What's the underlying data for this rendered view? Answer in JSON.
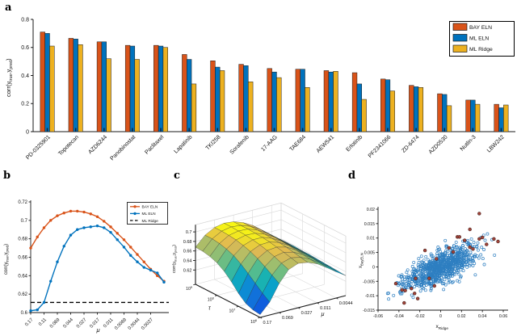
{
  "figure": {
    "background": "#ffffff"
  },
  "colors": {
    "bay_eln": "#D95319",
    "ml_eln": "#0072BD",
    "ml_ridge": "#EDB120",
    "ridge_dashed": "#000000",
    "scatter_blue": "#2E7FC1",
    "scatter_red": "#A2443A",
    "axis": "#1a1a1a",
    "wall_grid": "#d9d9d9"
  },
  "panels": {
    "a": {
      "letter": "a"
    },
    "b": {
      "letter": "b"
    },
    "c": {
      "letter": "c"
    },
    "d": {
      "letter": "d"
    }
  },
  "chart_data": [
    {
      "panel": "a",
      "type": "bar",
      "title": "",
      "xlabel": "",
      "ylabel": "corr(y_true,y_pred)",
      "ylabel_parts": [
        {
          "t": "corr(y"
        },
        {
          "sub": "true"
        },
        {
          "t": ",y"
        },
        {
          "sub": "pred"
        },
        {
          "t": ")"
        }
      ],
      "ylim": [
        0,
        0.8
      ],
      "yticks": [
        "0",
        "0.2",
        "0.4",
        "0.6",
        "0.8"
      ],
      "grid": false,
      "legend_position": "top-right",
      "categories": [
        "PD-0325901",
        "Topotecan",
        "AZD6244",
        "Panobinostat",
        "Paclitaxel",
        "Lapatinib",
        "TKI258",
        "Sorafenib",
        "17-AAG",
        "TAE684",
        "AEW541",
        "Erlotinib",
        "PF2341066",
        "ZD-6474",
        "AZD0530",
        "Nutlin-3",
        "LBW242"
      ],
      "series": [
        {
          "name": "BAY ELN",
          "color": "#D95319",
          "values": [
            0.71,
            0.665,
            0.64,
            0.615,
            0.615,
            0.55,
            0.505,
            0.48,
            0.45,
            0.445,
            0.435,
            0.42,
            0.375,
            0.33,
            0.27,
            0.225,
            0.195
          ]
        },
        {
          "name": "ML ELN",
          "color": "#0072BD",
          "values": [
            0.7,
            0.66,
            0.64,
            0.61,
            0.61,
            0.515,
            0.46,
            0.47,
            0.425,
            0.445,
            0.425,
            0.34,
            0.37,
            0.32,
            0.265,
            0.225,
            0.17
          ]
        },
        {
          "name": "ML Ridge",
          "color": "#EDB120",
          "values": [
            0.61,
            0.62,
            0.52,
            0.515,
            0.6,
            0.34,
            0.435,
            0.355,
            0.385,
            0.315,
            0.43,
            0.23,
            0.29,
            0.315,
            0.185,
            0.195,
            0.19
          ]
        }
      ]
    },
    {
      "panel": "b",
      "type": "line",
      "title": "",
      "xlabel": "μ",
      "ylabel": "corr(y_true,y_pred)",
      "ylabel_parts": [
        {
          "t": "corr(y"
        },
        {
          "sub": "true"
        },
        {
          "t": ",y"
        },
        {
          "sub": "pred"
        },
        {
          "t": ")"
        }
      ],
      "x_scale": "log-descending",
      "ylim": [
        0.6,
        0.72
      ],
      "yticks": [
        "0.6",
        "0.62",
        "0.64",
        "0.66",
        "0.68",
        "0.7",
        "0.72"
      ],
      "xtick_labels": [
        "0.17",
        "0.11",
        "0.069",
        "0.044",
        "0.027",
        "0.017",
        "0.011",
        "0.0069",
        "0.0044",
        "0.0027"
      ],
      "xtick_indices": [
        0,
        2,
        4,
        6,
        8,
        10,
        12,
        14,
        16,
        18
      ],
      "n_points": 21,
      "grid": false,
      "legend_position": "top-right",
      "series": [
        {
          "name": "BAY ELN",
          "color": "#D95319",
          "marker": "circle",
          "values": [
            0.67,
            0.682,
            0.692,
            0.7,
            0.705,
            0.708,
            0.71,
            0.71,
            0.709,
            0.707,
            0.704,
            0.699,
            0.693,
            0.686,
            0.679,
            0.671,
            0.663,
            0.655,
            0.647,
            0.64,
            0.634
          ]
        },
        {
          "name": "ML ELN",
          "color": "#0072BD",
          "marker": "circle",
          "values": [
            0.602,
            0.603,
            0.611,
            0.634,
            0.655,
            0.672,
            0.684,
            0.69,
            0.692,
            0.693,
            0.694,
            0.692,
            0.687,
            0.679,
            0.671,
            0.662,
            0.655,
            0.649,
            0.646,
            0.643,
            0.633
          ]
        },
        {
          "name": "ML Ridge",
          "color": "#000000",
          "style": "dashed",
          "constant_value": 0.611
        }
      ]
    },
    {
      "panel": "c",
      "type": "heatmap",
      "render_hint": "3d-surface",
      "title": "",
      "xlabel": "μ",
      "ylabel": "τ",
      "zlabel": "corr(y_true,y_pred)",
      "zlabel_parts": [
        {
          "t": "corr(y"
        },
        {
          "sub": "true"
        },
        {
          "t": ",y"
        },
        {
          "sub": "pred"
        },
        {
          "t": ")"
        }
      ],
      "zticks": [
        "0.62",
        "0.64",
        "0.66",
        "0.68",
        "0.7"
      ],
      "ztick_values": [
        0.62,
        0.64,
        0.66,
        0.68,
        0.7
      ],
      "mu_values": [
        0.17,
        0.107,
        0.0675,
        0.0426,
        0.0269,
        0.0169,
        0.0107,
        0.00675,
        0.00426,
        0.0027
      ],
      "mu_tick_labels": [
        "0.17",
        "0.069",
        "0.027",
        "0.011",
        "0.0044"
      ],
      "mu_tick_cols": [
        0,
        2,
        4,
        6,
        8
      ],
      "tau_tick_labels": [
        {
          "t": "10"
        },
        {
          "t": "10"
        },
        {
          "t": "10"
        },
        {
          "t": "10"
        }
      ],
      "tau_tick_sups": [
        "6",
        "7",
        "8",
        "9"
      ],
      "tau_values_order": "rows from 1e9 (back) to 1e6 (front)",
      "colormap": "parula",
      "z_grid": [
        [
          0.668,
          0.688,
          0.699,
          0.703,
          0.701,
          0.694,
          0.683,
          0.668,
          0.652,
          0.638
        ],
        [
          0.667,
          0.688,
          0.699,
          0.703,
          0.701,
          0.694,
          0.683,
          0.668,
          0.652,
          0.638
        ],
        [
          0.664,
          0.686,
          0.698,
          0.702,
          0.701,
          0.694,
          0.682,
          0.668,
          0.652,
          0.638
        ],
        [
          0.658,
          0.682,
          0.696,
          0.701,
          0.7,
          0.693,
          0.682,
          0.667,
          0.651,
          0.637
        ],
        [
          0.648,
          0.676,
          0.692,
          0.699,
          0.699,
          0.692,
          0.681,
          0.666,
          0.651,
          0.637
        ],
        [
          0.634,
          0.666,
          0.687,
          0.696,
          0.697,
          0.691,
          0.68,
          0.665,
          0.65,
          0.636
        ],
        [
          0.617,
          0.654,
          0.68,
          0.692,
          0.694,
          0.689,
          0.678,
          0.664,
          0.649,
          0.635
        ],
        [
          0.604,
          0.641,
          0.671,
          0.687,
          0.691,
          0.686,
          0.676,
          0.663,
          0.648,
          0.634
        ],
        [
          0.598,
          0.628,
          0.661,
          0.681,
          0.687,
          0.683,
          0.674,
          0.661,
          0.647,
          0.633
        ],
        [
          0.596,
          0.617,
          0.651,
          0.675,
          0.683,
          0.68,
          0.672,
          0.659,
          0.645,
          0.632
        ]
      ]
    },
    {
      "panel": "d",
      "type": "scatter",
      "title": "",
      "xlabel": "x_Ridge",
      "xlabel_parts": [
        {
          "t": "x"
        },
        {
          "sub": "Ridge"
        }
      ],
      "ylabel": "x_BayELN",
      "ylabel_parts": [
        {
          "t": "x"
        },
        {
          "sub": "BayELN"
        }
      ],
      "xlim": [
        -0.06,
        0.06
      ],
      "ylim": [
        -0.015,
        0.02
      ],
      "xticks": [
        "-0.06",
        "-0.04",
        "-0.02",
        "0",
        "0.02",
        "0.04",
        "0.06"
      ],
      "xtick_values": [
        -0.06,
        -0.04,
        -0.02,
        0,
        0.02,
        0.04,
        0.06
      ],
      "yticks": [
        "0.02",
        "0.015",
        "0.01",
        "0.005",
        "0",
        "-0.005",
        "-0.01",
        "-0.015"
      ],
      "ytick_values": [
        0.02,
        0.015,
        0.01,
        0.005,
        0,
        -0.005,
        -0.01,
        -0.015
      ],
      "red_points": [
        [
          0.037,
          0.0185
        ],
        [
          0.028,
          0.013
        ],
        [
          0.016,
          0.0104
        ],
        [
          0.023,
          0.0092
        ],
        [
          0.037,
          0.0097
        ],
        [
          0.04,
          0.0102
        ],
        [
          0.044,
          0.0078
        ],
        [
          0.051,
          0.0097
        ],
        [
          0.055,
          0.0088
        ],
        [
          0.028,
          0.0068
        ],
        [
          0.031,
          0.0062
        ],
        [
          0.008,
          0.0066
        ],
        [
          0.012,
          0.0052
        ],
        [
          0.018,
          0.0104
        ],
        [
          -0.015,
          0.0057
        ],
        [
          -0.004,
          0.0028
        ],
        [
          -0.011,
          -0.004
        ],
        [
          -0.024,
          -0.004
        ],
        [
          -0.043,
          -0.0058
        ],
        [
          -0.006,
          -0.0066
        ],
        [
          -0.028,
          -0.0075
        ],
        [
          -0.037,
          -0.008
        ],
        [
          -0.034,
          -0.0082
        ],
        [
          -0.025,
          -0.0092
        ],
        [
          -0.022,
          -0.011
        ],
        [
          -0.035,
          -0.0125
        ]
      ],
      "blue_cloud": {
        "count": 820,
        "seed": 12,
        "x_mean": 0.0005,
        "x_sigma": 0.0165,
        "slope": 0.155,
        "noise_sigma": 0.00265,
        "x_range": [
          -0.054,
          0.058
        ],
        "y_range": [
          -0.0118,
          0.0115
        ]
      }
    }
  ]
}
